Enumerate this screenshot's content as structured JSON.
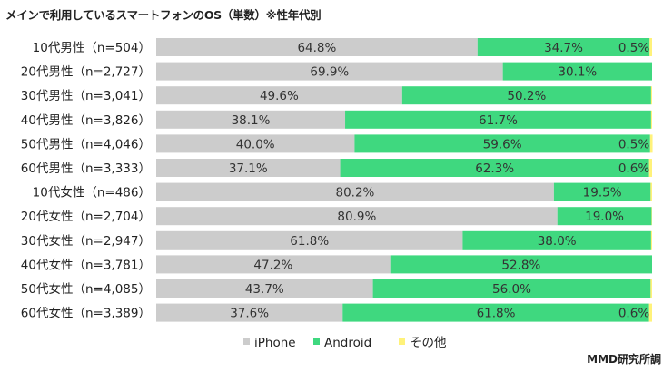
{
  "chart_data": {
    "type": "bar",
    "orientation": "horizontal",
    "stacked": true,
    "percent": true,
    "title": "メインで利用しているスマートフォンのOS（単数）※性年代別",
    "credit": "MMD研究所調",
    "categories": [
      "10代男性（n=504）",
      "20代男性（n=2,727）",
      "30代男性（n=3,041）",
      "40代男性（n=3,826）",
      "50代男性（n=4,046）",
      "60代男性（n=3,333）",
      "10代女性（n=486）",
      "20代女性（n=2,704）",
      "30代女性（n=2,947）",
      "40代女性（n=3,781）",
      "50代女性（n=4,085）",
      "60代女性（n=3,389）"
    ],
    "series": [
      {
        "name": "iPhone",
        "color": "#cccccc",
        "values": [
          64.8,
          69.9,
          49.6,
          38.1,
          40.0,
          37.1,
          80.2,
          80.9,
          61.8,
          47.2,
          43.7,
          37.6
        ],
        "labels": [
          "64.8%",
          "69.9%",
          "49.6%",
          "38.1%",
          "40.0%",
          "37.1%",
          "80.2%",
          "80.9%",
          "61.8%",
          "47.2%",
          "43.7%",
          "37.6%"
        ]
      },
      {
        "name": "Android",
        "color": "#3fd87f",
        "values": [
          34.7,
          30.1,
          50.2,
          61.7,
          59.6,
          62.3,
          19.5,
          19.0,
          38.0,
          52.8,
          56.0,
          61.8
        ],
        "labels": [
          "34.7%",
          "30.1%",
          "50.2%",
          "61.7%",
          "59.6%",
          "62.3%",
          "19.5%",
          "19.0%",
          "38.0%",
          "52.8%",
          "56.0%",
          "61.8%"
        ]
      },
      {
        "name": "その他",
        "color": "#fff27a",
        "values": [
          0.5,
          0.0,
          0.2,
          0.2,
          0.5,
          0.6,
          0.3,
          0.1,
          0.2,
          0.0,
          0.3,
          0.6
        ],
        "labels": [
          "0.5%",
          "",
          "",
          "",
          "0.5%",
          "0.6%",
          "",
          "",
          "",
          "",
          "",
          "0.6%"
        ]
      }
    ],
    "xlim": [
      0,
      100
    ],
    "grid": false,
    "legend": "bottom"
  }
}
